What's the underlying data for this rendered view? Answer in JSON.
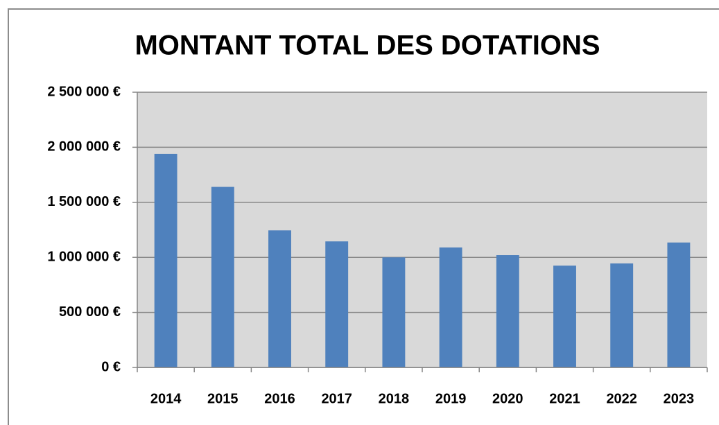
{
  "chart_data": {
    "type": "bar",
    "title": "MONTANT TOTAL DES DOTATIONS",
    "categories": [
      "2014",
      "2015",
      "2016",
      "2017",
      "2018",
      "2019",
      "2020",
      "2021",
      "2022",
      "2023"
    ],
    "values": [
      1940000,
      1640000,
      1245000,
      1145000,
      1000000,
      1090000,
      1020000,
      925000,
      945000,
      1135000
    ],
    "color": "#4f81bd",
    "ylim": [
      0,
      2500000
    ],
    "yticks": [
      {
        "value": 0,
        "label": "0 €"
      },
      {
        "value": 500000,
        "label": "500 000 €"
      },
      {
        "value": 1000000,
        "label": "1 000 000 €"
      },
      {
        "value": 1500000,
        "label": "1 500 000 €"
      },
      {
        "value": 2000000,
        "label": "2 000 000 €"
      },
      {
        "value": 2500000,
        "label": "2 500 000 €"
      }
    ],
    "grid": true
  }
}
